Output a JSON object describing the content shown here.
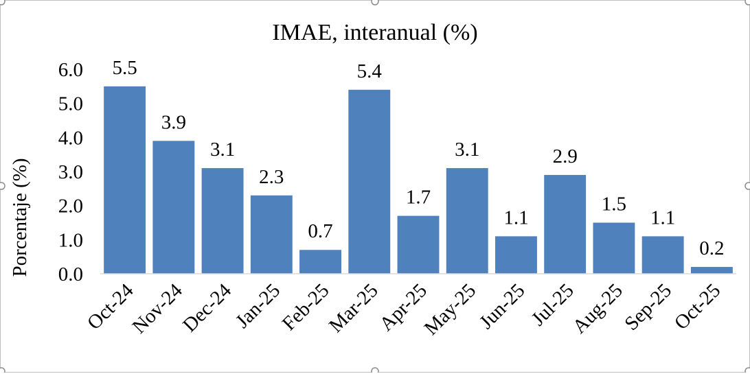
{
  "chart_data": {
    "type": "bar",
    "title": "IMAE, interanual (%)",
    "xlabel": "",
    "ylabel": "Porcentaje (%)",
    "categories": [
      "Oct-24",
      "Nov-24",
      "Dec-24",
      "Jan-25",
      "Feb-25",
      "Mar-25",
      "Apr-25",
      "May-25",
      "Jun-25",
      "Jul-25",
      "Aug-25",
      "Sep-25",
      "Oct-25"
    ],
    "values": [
      5.5,
      3.9,
      3.1,
      2.3,
      0.7,
      5.4,
      1.7,
      3.1,
      1.1,
      2.9,
      1.5,
      1.1,
      0.2
    ],
    "value_labels": [
      "5.5",
      "3.9",
      "3.1",
      "2.3",
      "0.7",
      "5.4",
      "1.7",
      "3.1",
      "1.1",
      "2.9",
      "1.5",
      "1.1",
      "0.2"
    ],
    "ylim": [
      0,
      6
    ],
    "yticks": [
      0,
      1,
      2,
      3,
      4,
      5,
      6
    ],
    "ytick_labels": [
      "0.0",
      "1.0",
      "2.0",
      "3.0",
      "4.0",
      "5.0",
      "6.0"
    ],
    "grid": false,
    "legend": "none",
    "bar_color": "#4f81bd",
    "axis_color": "#d9d9d9",
    "frame_color": "#bfbfbf"
  }
}
